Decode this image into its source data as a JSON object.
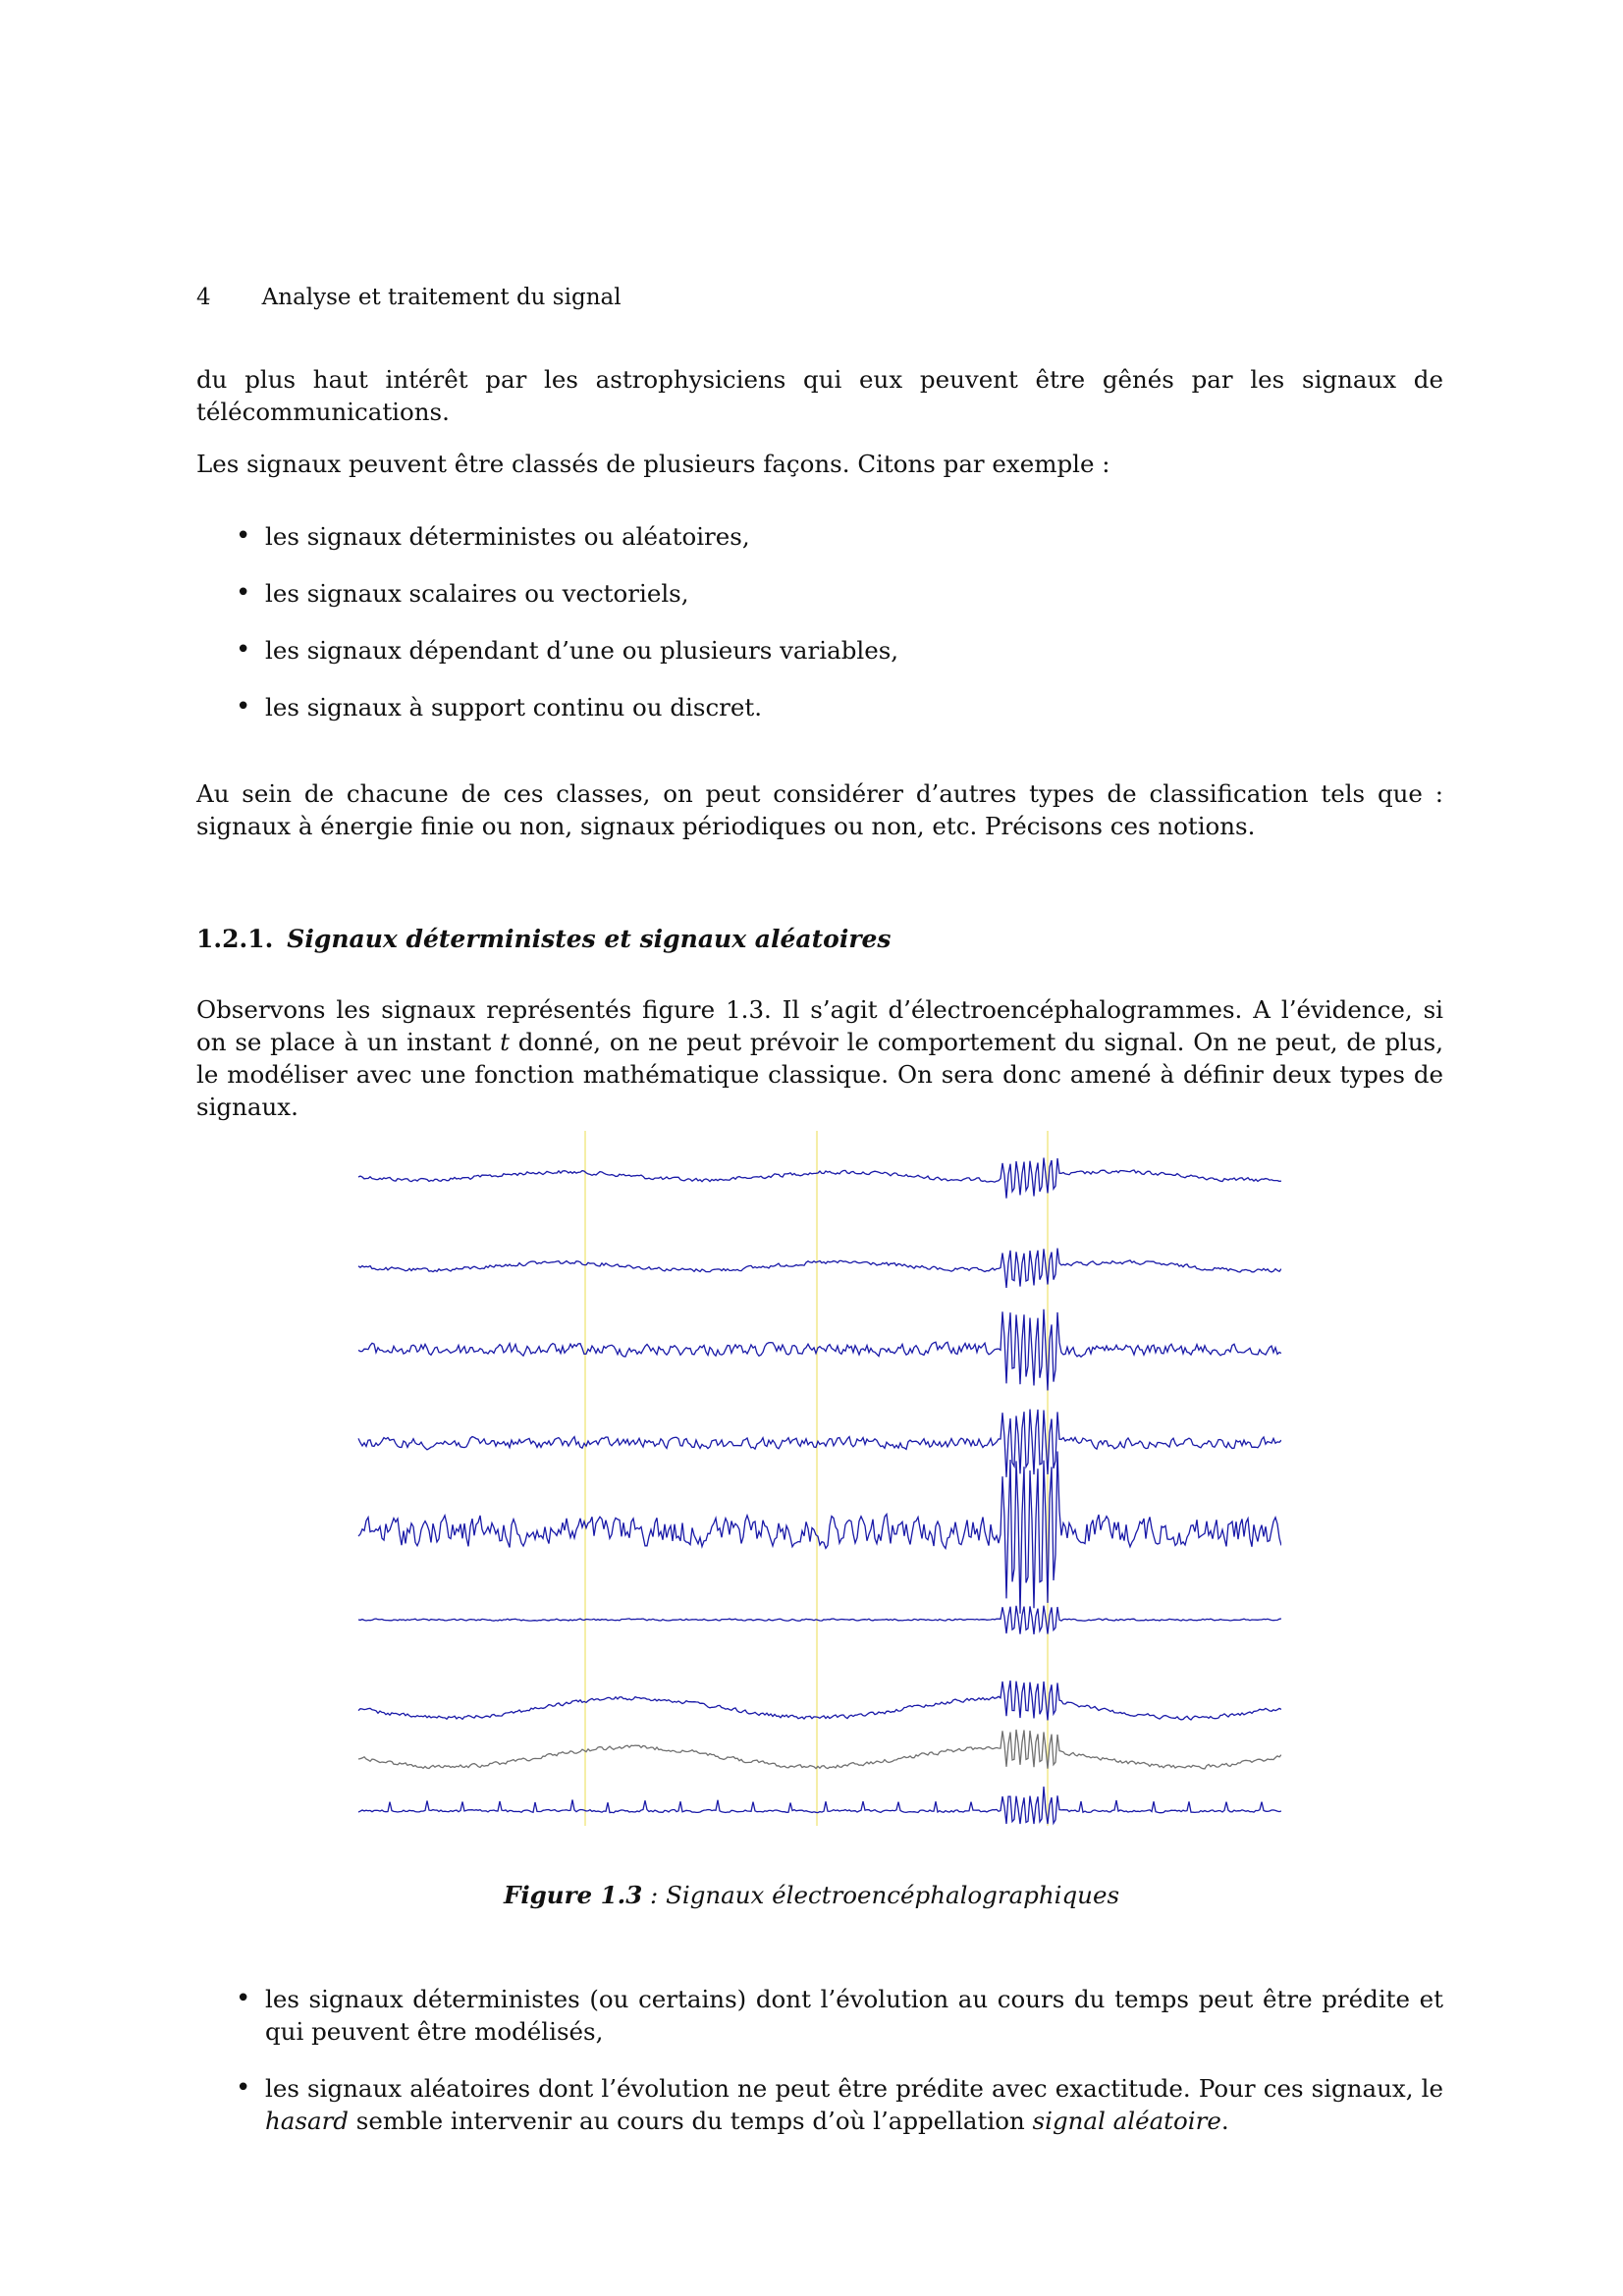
{
  "header": {
    "page_number": "4",
    "running_title": "Analyse et traitement du signal"
  },
  "para1": "du plus haut intérêt par les astrophysiciens qui eux peuvent être gênés par les signaux de télécommunications.",
  "para2": "Les signaux peuvent être classés de plusieurs façons. Citons par exemple :",
  "list1": [
    "les signaux déterministes ou aléatoires,",
    "les signaux scalaires ou vectoriels,",
    "les signaux dépendant d’une ou plusieurs variables,",
    "les signaux à support continu ou discret."
  ],
  "para3": "Au sein de chacune de ces classes, on peut considérer d’autres types de classification tels que : signaux à énergie finie ou non, signaux périodiques ou non, etc. Précisons ces notions.",
  "section": {
    "number": "1.2.1.",
    "title": "Signaux déterministes et signaux aléatoires"
  },
  "para4": {
    "before_t": "Observons les signaux représentés figure 1.3. Il s’agit d’électroencéphalogrammes. A l’évidence, si on se place à un instant ",
    "t": "t",
    "after_t": " donné, on ne peut prévoir le comportement du signal. On ne peut, de plus, le modéliser avec une fonction mathématique classique. On sera donc amené à définir deux types de signaux."
  },
  "figure": {
    "label": "Figure 1.3",
    "separator": " : ",
    "caption": "Signaux électroencéphalographiques",
    "trace_colors": [
      "#1a1aa8",
      "#1a1aa8",
      "#1a1aa8",
      "#1a1aa8",
      "#1a1aa8",
      "#1a1aa8",
      "#1a1aa8",
      "#707070",
      "#1a1aa8"
    ],
    "marker_color": "#f2e98a"
  },
  "list2": [
    {
      "text": "les signaux déterministes (ou certains) dont l’évolution au cours du temps peut être prédite et qui peuvent être modélisés,"
    },
    {
      "before": "les signaux aléatoires dont l’évolution ne peut être prédite avec exactitude. Pour ces signaux, le ",
      "em1": "hasard",
      "middle": " semble intervenir au cours du temps d’où l’appellation ",
      "em2": "signal aléatoire",
      "after": "."
    }
  ]
}
